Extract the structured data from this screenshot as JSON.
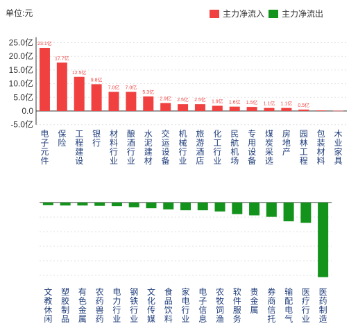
{
  "unit_label": "单位:元",
  "legend": {
    "inflow": {
      "label": "主力净流入",
      "color": "#f04040"
    },
    "outflow": {
      "label": "主力净流出",
      "color": "#13931b"
    }
  },
  "chart_data": [
    {
      "type": "bar",
      "title": "",
      "ylim": [
        -5,
        27
      ],
      "yticks": [
        "25.0亿",
        "20.0亿",
        "15.0亿",
        "10.0亿",
        "5.0亿",
        "0.0",
        "-5.0亿"
      ],
      "ytick_values": [
        25,
        20,
        15,
        10,
        5,
        0,
        -5
      ],
      "grid": true,
      "categories": [
        "电子元件",
        "保险",
        "工程建设",
        "银行",
        "材料行业",
        "酿酒行业",
        "水泥建材",
        "交运设备",
        "机械行业",
        "旅游酒店",
        "化工行业",
        "民航机场",
        "专用设备",
        "煤炭采选",
        "房地产",
        "园林工程",
        "包装材料",
        "木业家具"
      ],
      "values": [
        23.1,
        17.7,
        12.5,
        9.8,
        7.0,
        7.0,
        5.3,
        2.9,
        2.5,
        2.5,
        1.9,
        1.6,
        1.5,
        1.1,
        1.1,
        0.5,
        0.2,
        0.1
      ],
      "labels": [
        "23.1亿",
        "17.7亿",
        "12.5亿",
        "9.8亿",
        "7.0亿",
        "7.0亿",
        "5.3亿",
        "2.9亿",
        "2.5亿",
        "2.5亿",
        "1.9亿",
        "1.6亿",
        "1.5亿",
        "1.1亿",
        "1.1亿",
        "0.5亿",
        "",
        ""
      ],
      "color": "#f04040"
    },
    {
      "type": "bar",
      "title": "",
      "grid": true,
      "categories": [
        "文教休闲",
        "塑胶制品",
        "有色金属",
        "农药兽药",
        "电力行业",
        "钢铁行业",
        "文化传媒",
        "食品饮料",
        "家电行业",
        "电子信息",
        "农牧饲渔",
        "软件服务",
        "贵金属",
        "券商信托",
        "输配电气",
        "医疗行业",
        "医药制造"
      ],
      "values": [
        -0.9,
        -1.0,
        -1.0,
        -1.1,
        -1.2,
        -1.6,
        -1.9,
        -2.3,
        -2.6,
        -2.6,
        -3.0,
        -3.9,
        -4.3,
        -4.8,
        -6.3,
        -6.8,
        -25.0
      ],
      "color": "#13931b"
    }
  ]
}
